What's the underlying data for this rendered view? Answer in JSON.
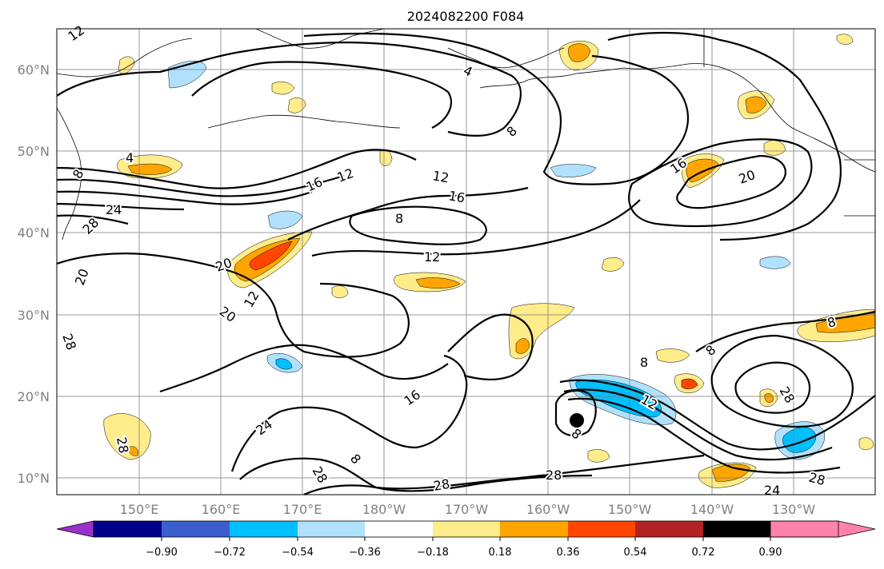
{
  "title": "2024082200 F084",
  "lat_labels": [
    "60°N",
    "50°N",
    "40°N",
    "30°N",
    "20°N",
    "10°N"
  ],
  "lon_labels": [
    "150°E",
    "160°E",
    "170°E",
    "180°W",
    "170°W",
    "160°W",
    "150°W",
    "140°W",
    "130°W"
  ],
  "colorbar": {
    "ticks": [
      "−0.90",
      "−0.72",
      "−0.54",
      "−0.36",
      "−0.18",
      "0.18",
      "0.36",
      "0.54",
      "0.72",
      "0.90"
    ],
    "colors": [
      "#9932cc",
      "#00008b",
      "#3a5fcd",
      "#00bfff",
      "#b0e2ff",
      "#ffffff",
      "#ffec8b",
      "#ffa500",
      "#ff4500",
      "#b22222",
      "#ff82ab"
    ]
  },
  "contour_labels": [
    "12",
    "4",
    "8",
    "4",
    "8",
    "24",
    "28",
    "16",
    "12",
    "12",
    "16",
    "8",
    "12",
    "20",
    "20",
    "12",
    "20",
    "28",
    "8",
    "16",
    "20",
    "8",
    "12",
    "8",
    "28",
    "16",
    "24",
    "28",
    "28",
    "28",
    "28",
    "24",
    "8",
    "28",
    "8"
  ],
  "marker": "tropical-cyclone-position"
}
